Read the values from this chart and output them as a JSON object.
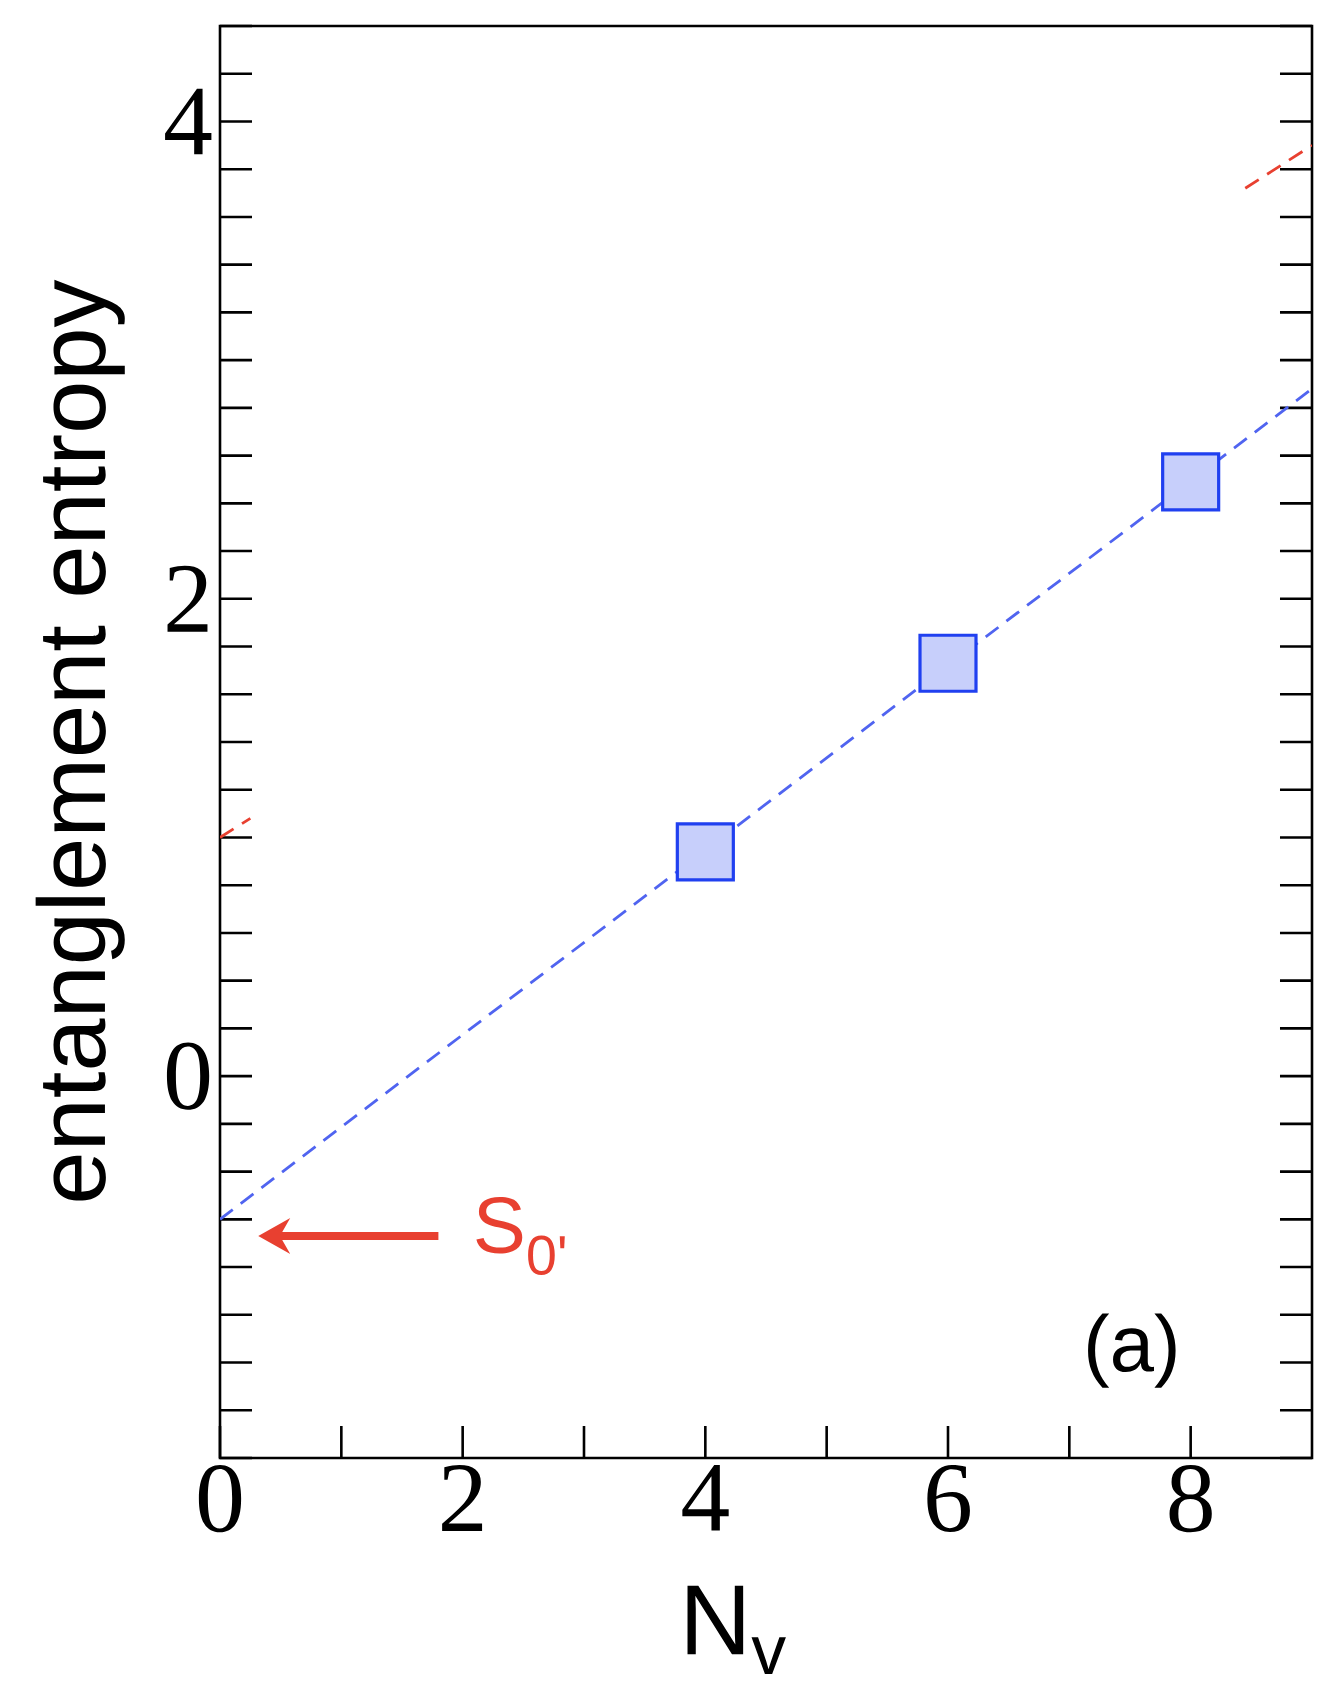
{
  "chart_data": {
    "type": "scatter",
    "xlabel": "N$_{v}$",
    "ylabel": "entanglement entropy",
    "xlim": [
      0,
      9
    ],
    "ylim": [
      -1.6,
      4.4
    ],
    "xticks": [
      0,
      2,
      4,
      6,
      8
    ],
    "yticks": [
      {
        "value": -1.6,
        "label": null
      },
      {
        "value": -1.4,
        "label": null
      },
      {
        "value": -1.2,
        "label": null
      },
      {
        "value": -1,
        "label": null
      },
      {
        "value": -0.8,
        "label": null
      },
      {
        "value": -0.6,
        "label": null
      },
      {
        "value": -0.4,
        "label": null
      },
      {
        "value": -0.2,
        "label": null
      },
      0,
      {
        "value": 0.2,
        "label": null
      },
      {
        "value": 0.4,
        "label": null
      },
      {
        "value": 0.6,
        "label": null
      },
      {
        "value": 0.8,
        "label": null
      },
      {
        "value": 1,
        "label": null
      },
      {
        "value": 1.2,
        "label": null
      },
      {
        "value": 1.4,
        "label": null
      },
      {
        "value": 1.6,
        "label": null
      },
      {
        "value": 1.8,
        "label": null
      },
      2,
      {
        "value": 2.2,
        "label": null
      },
      {
        "value": 2.4,
        "label": null
      },
      {
        "value": 2.6,
        "label": null
      },
      {
        "value": 2.8,
        "label": null
      },
      {
        "value": 3,
        "label": null
      },
      {
        "value": 3.2,
        "label": null
      },
      {
        "value": 3.4,
        "label": null
      },
      {
        "value": 3.6,
        "label": null
      },
      {
        "value": 3.8,
        "label": null
      },
      4,
      {
        "value": 4.2,
        "label": null
      },
      {
        "value": 4.4,
        "label": null
      }
    ],
    "series": [
      {
        "color": "#2040f0",
        "x": [
          4,
          6,
          8
        ],
        "values": [
          0.94,
          1.73,
          2.49
        ],
        "marker": "square"
      },
      {
        "type": "line",
        "color": "#5064f0",
        "x": [
          0,
          9
        ],
        "values": [
          -0.6,
          2.88
        ],
        "line_style": "dashed"
      },
      {
        "type": "line",
        "color": "#e84030",
        "x": [
          0,
          0.25,
          4,
          8.45,
          9
        ],
        "values": [
          1.0,
          1.08,
          null,
          3.72,
          3.9
        ],
        "line_style": "dashed"
      }
    ],
    "annotations": [
      "S$_{0'}$",
      "(a)"
    ]
  }
}
